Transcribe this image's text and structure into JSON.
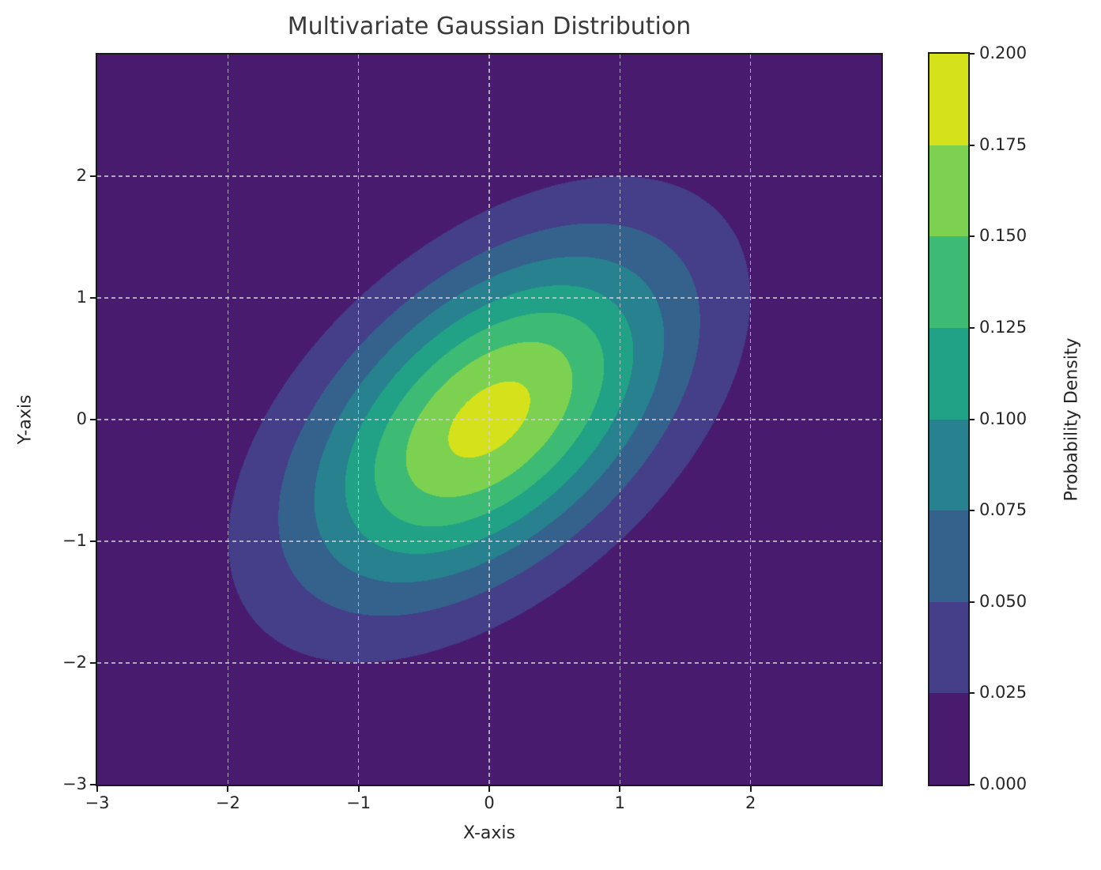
{
  "figure": {
    "background": "#ffffff",
    "text_color": "#262626",
    "spine_color": "#1a1a1a"
  },
  "chart_data": {
    "type": "heatmap",
    "subtype": "filled-contour",
    "title": "Multivariate Gaussian Distribution",
    "xlabel": "X-axis",
    "ylabel": "Y-axis",
    "colorbar_label": "Probability Density",
    "xlim": [
      -3,
      3
    ],
    "ylim": [
      -3,
      3
    ],
    "grid": {
      "show": true,
      "style": "dashed",
      "color": "#cfcfd4"
    },
    "x_ticks": {
      "values": [
        -3,
        -2,
        -1,
        0,
        1,
        2
      ],
      "labels": [
        "−3",
        "−2",
        "−1",
        "0",
        "1",
        "2"
      ]
    },
    "y_ticks": {
      "values": [
        -3,
        -2,
        -1,
        0,
        1,
        2
      ],
      "labels": [
        "−3",
        "−2",
        "−1",
        "0",
        "1",
        "2"
      ]
    },
    "levels": [
      0.0,
      0.025,
      0.05,
      0.075,
      0.1,
      0.125,
      0.15,
      0.175,
      0.2
    ],
    "colorbar_tick_labels": [
      "0.000",
      "0.025",
      "0.050",
      "0.075",
      "0.100",
      "0.125",
      "0.150",
      "0.175",
      "0.200"
    ],
    "band_colors": [
      "#481b6e",
      "#443f88",
      "#34628d",
      "#27818e",
      "#21a286",
      "#3dbb74",
      "#7cd250",
      "#d5e21b"
    ],
    "colormap": "viridis",
    "distribution": {
      "kind": "multivariate-normal",
      "mean": [
        0,
        0
      ],
      "cov": [
        [
          1.0,
          0.5
        ],
        [
          0.5,
          1.0
        ]
      ],
      "peak_density": 0.1838
    }
  }
}
